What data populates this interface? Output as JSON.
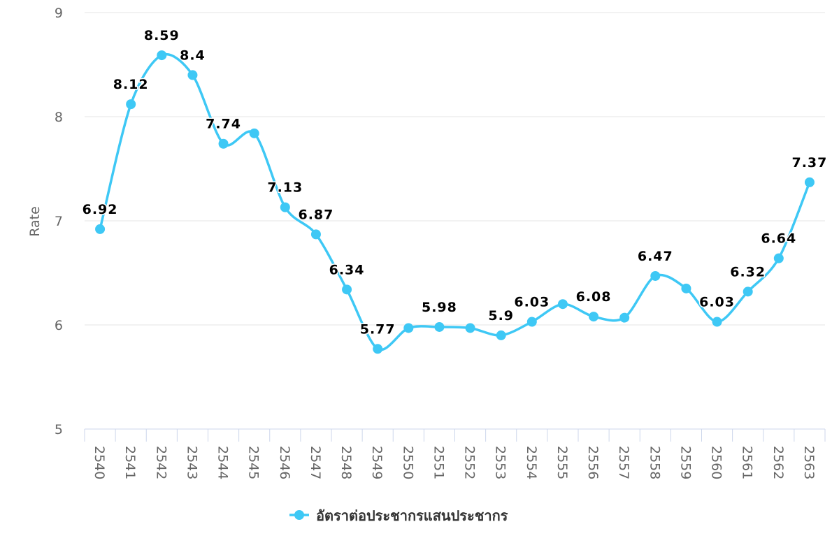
{
  "chart_data": {
    "type": "line",
    "title": "",
    "xlabel": "",
    "ylabel": "Rate",
    "ylim": [
      5,
      9
    ],
    "yticks": [
      5,
      6,
      7,
      8,
      9
    ],
    "grid": true,
    "legend_position": "bottom-center",
    "categories": [
      "2540",
      "2541",
      "2542",
      "2543",
      "2544",
      "2545",
      "2546",
      "2547",
      "2548",
      "2549",
      "2550",
      "2551",
      "2552",
      "2553",
      "2554",
      "2555",
      "2556",
      "2557",
      "2558",
      "2559",
      "2560",
      "2561",
      "2562",
      "2563"
    ],
    "series": [
      {
        "name": "อัตราต่อประชากรแสนประชากร",
        "color": "#3ec8f5",
        "values": [
          6.92,
          8.12,
          8.59,
          8.4,
          7.74,
          7.84,
          7.13,
          6.87,
          6.34,
          5.77,
          5.97,
          5.98,
          5.97,
          5.9,
          6.03,
          6.2,
          6.08,
          6.07,
          6.47,
          6.35,
          6.03,
          6.32,
          6.64,
          7.37
        ],
        "labels": [
          "6.92",
          "8.12",
          "8.59",
          "8.4",
          "7.74",
          "",
          "7.13",
          "6.87",
          "6.34",
          "5.77",
          "",
          "5.98",
          "",
          "5.9",
          "6.03",
          "",
          "6.08",
          "",
          "6.47",
          "",
          "6.03",
          "6.32",
          "6.64",
          "7.37"
        ]
      }
    ]
  }
}
